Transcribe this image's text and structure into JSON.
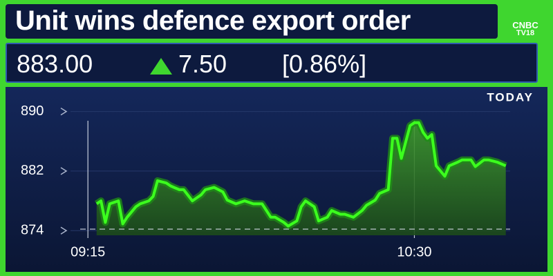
{
  "header": {
    "headline": "Unit wins defence export order",
    "logo_top": "CNBC",
    "logo_bottom": "TV18"
  },
  "quote": {
    "price": "883.00",
    "change": "7.50",
    "change_pct": "[0.86%]"
  },
  "chart_data": {
    "type": "area",
    "period": "TODAY",
    "color": "#3cff1e",
    "x": [
      "09:17",
      "09:18",
      "09:19",
      "09:20",
      "09:22",
      "09:23",
      "09:24",
      "09:26",
      "09:27",
      "09:29",
      "09:30",
      "09:31",
      "09:33",
      "09:34",
      "09:36",
      "09:37",
      "09:39",
      "09:41",
      "09:42",
      "09:44",
      "09:46",
      "09:47",
      "09:49",
      "09:51",
      "09:53",
      "09:55",
      "09:57",
      "09:58",
      "10:00",
      "10:01",
      "10:03",
      "10:04",
      "10:05",
      "10:07",
      "10:08",
      "10:10",
      "10:11",
      "10:13",
      "10:14",
      "10:16",
      "10:18",
      "10:19",
      "10:21",
      "10:22",
      "10:24",
      "10:25",
      "10:26",
      "10:27",
      "10:29",
      "10:30",
      "10:31",
      "10:32",
      "10:33",
      "10:34",
      "10:35",
      "10:37",
      "10:38",
      "10:40",
      "10:41",
      "10:43",
      "10:44",
      "10:46",
      "10:47",
      "10:49",
      "10:51"
    ],
    "values": [
      877.6,
      878,
      875.1,
      877.6,
      878,
      874.9,
      875.8,
      877.2,
      877.6,
      878,
      878.6,
      880.7,
      880.4,
      880,
      879.5,
      879.5,
      878,
      878.8,
      879.5,
      879.8,
      879.2,
      878.1,
      877.6,
      878,
      877.6,
      877.6,
      875.8,
      875.8,
      875.1,
      874.6,
      875.3,
      877.2,
      878,
      877.2,
      875.3,
      875.8,
      876.7,
      876.2,
      876.2,
      875.8,
      876.7,
      877.4,
      878.1,
      879,
      879.5,
      886.4,
      886.4,
      883.7,
      888.1,
      888.5,
      888.5,
      887.2,
      886.4,
      886.9,
      882.7,
      881.3,
      882.7,
      883.2,
      883.5,
      883.5,
      882.6,
      883.5,
      883.5,
      883.2,
      882.7
    ],
    "reference_line": 874.2,
    "xlim": [
      "09:11",
      "10:52"
    ],
    "xticks": [
      "09:15",
      "10:30"
    ],
    "ylim": [
      873,
      892
    ],
    "yticks": [
      874,
      882,
      890
    ],
    "grid": true
  }
}
